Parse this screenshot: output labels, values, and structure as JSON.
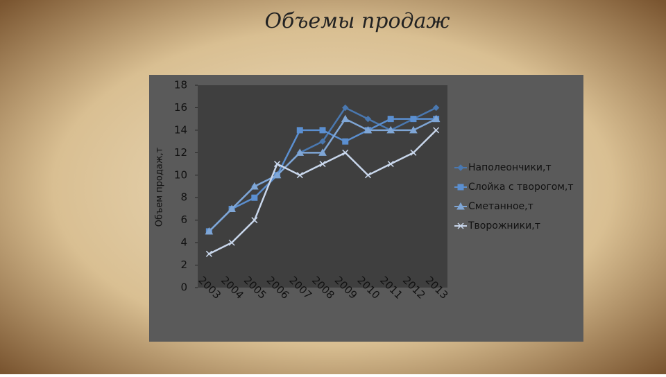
{
  "chart_data": {
    "type": "line",
    "title": "Объемы продаж",
    "y_label": "Объем продаж,т",
    "categories": [
      "2003",
      "2004",
      "2005",
      "2006",
      "2007",
      "2008",
      "2009",
      "2010",
      "2011",
      "2012",
      "2013"
    ],
    "series": [
      {
        "name": "Наполеончики,т",
        "color": "#4a78b0",
        "marker": "diamond",
        "values": [
          5,
          7,
          9,
          10,
          12,
          13,
          16,
          15,
          14,
          15,
          16
        ]
      },
      {
        "name": "Слойка с творогом,т",
        "color": "#5b8fd0",
        "marker": "square",
        "values": [
          5,
          7,
          8,
          10,
          14,
          14,
          13,
          14,
          15,
          15,
          15
        ]
      },
      {
        "name": "Сметанное,т",
        "color": "#7fa6d6",
        "marker": "triangle",
        "values": [
          5,
          7,
          9,
          10,
          12,
          12,
          15,
          14,
          14,
          14,
          15
        ]
      },
      {
        "name": "Творожники,т",
        "color": "#c9d7ec",
        "marker": "x",
        "values": [
          3,
          4,
          6,
          11,
          10,
          11,
          12,
          10,
          11,
          12,
          14
        ]
      }
    ],
    "ylim": [
      0,
      18
    ],
    "yticks": [
      0,
      2,
      4,
      6,
      8,
      10,
      12,
      14,
      16,
      18
    ],
    "legend": "right"
  }
}
